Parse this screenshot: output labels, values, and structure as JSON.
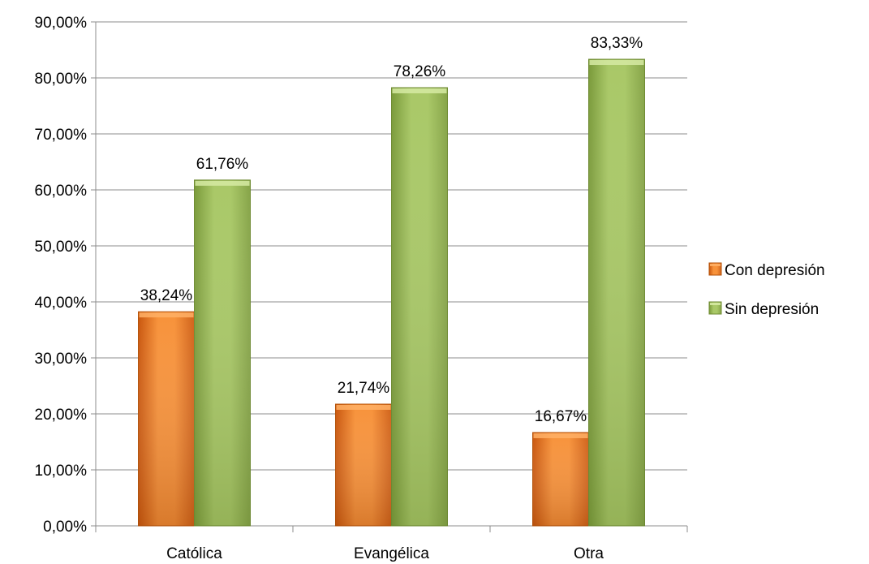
{
  "chart_data": {
    "type": "bar",
    "title": "",
    "xlabel": "",
    "ylabel": "",
    "categories": [
      "Católica",
      "Evangélica",
      "Otra"
    ],
    "series": [
      {
        "name": "Con depresión",
        "values": [
          38.24,
          21.74,
          16.67
        ],
        "labels": [
          "38,24%",
          "21,74%",
          "16,67%"
        ],
        "color": "#e8731c"
      },
      {
        "name": "Sin depresión",
        "values": [
          61.76,
          78.26,
          83.33
        ],
        "labels": [
          "61,76%",
          "78,26%",
          "83,33%"
        ],
        "color": "#9bbb59"
      }
    ],
    "ylim": [
      0,
      90
    ],
    "ytick_step": 10,
    "ytick_labels": [
      "0,00%",
      "10,00%",
      "20,00%",
      "30,00%",
      "40,00%",
      "50,00%",
      "60,00%",
      "70,00%",
      "80,00%",
      "90,00%"
    ],
    "grid": true,
    "legend_position": "right"
  }
}
